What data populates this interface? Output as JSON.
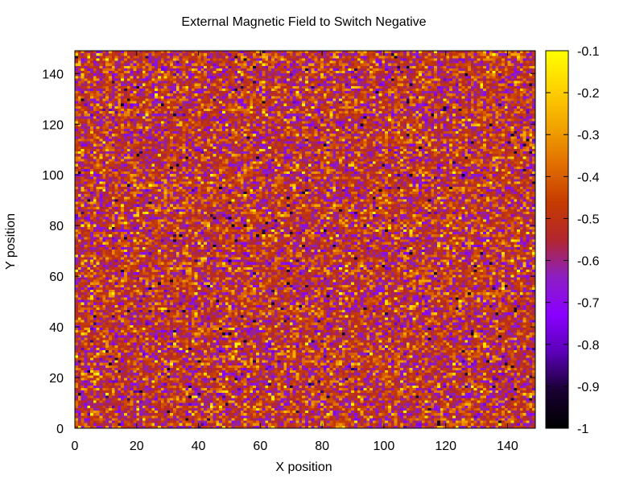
{
  "chart_data": {
    "type": "heatmap",
    "title": "External Magnetic Field to Switch Negative",
    "xlabel": "X position",
    "ylabel": "Y position",
    "xlim": [
      0,
      149
    ],
    "ylim": [
      0,
      149
    ],
    "x_ticks": [
      "0",
      "20",
      "40",
      "60",
      "80",
      "100",
      "120",
      "140"
    ],
    "y_ticks": [
      "0",
      "20",
      "40",
      "60",
      "80",
      "100",
      "120",
      "140"
    ],
    "colorbar": {
      "range": [
        -1,
        -0.1
      ],
      "ticks": [
        "-1",
        "-0.9",
        "-0.8",
        "-0.7",
        "-0.6",
        "-0.5",
        "-0.4",
        "-0.3",
        "-0.2",
        "-0.1"
      ],
      "palette": [
        "#000000",
        "#1a0033",
        "#5b00b8",
        "#8a00ff",
        "#8c1fc4",
        "#b3262e",
        "#c63c00",
        "#e26f00",
        "#f2a400",
        "#ffd200",
        "#ffff00"
      ]
    },
    "grid_size": [
      150,
      150
    ],
    "value_distribution": "noise, mostly between -0.75 and -0.25",
    "grid": false,
    "legend": "colorbar-right"
  }
}
